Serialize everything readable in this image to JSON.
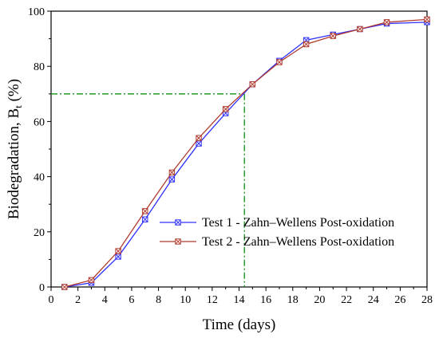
{
  "chart_data": {
    "type": "line",
    "title": "",
    "xlabel": "Time (days)",
    "ylabel_main": "Biodegradation, B",
    "ylabel_sub": "t",
    "ylabel_unit": " (%)",
    "xlim": [
      0,
      28
    ],
    "ylim": [
      0,
      100
    ],
    "xticks": [
      0,
      2,
      4,
      6,
      8,
      10,
      12,
      14,
      16,
      18,
      20,
      22,
      24,
      26,
      28
    ],
    "yticks": [
      0,
      20,
      40,
      60,
      80,
      100
    ],
    "grid": false,
    "legend_position": "center-right",
    "x": [
      1,
      3,
      5,
      7,
      9,
      11,
      13,
      15,
      17,
      19,
      21,
      23,
      25,
      28
    ],
    "series": [
      {
        "name": "Test 1 - Zahn–Wellens Post-oxidation",
        "color": "#3030ff",
        "marker": "x-square",
        "values": [
          0,
          1.5,
          11,
          24.5,
          39,
          52,
          63,
          73.5,
          82,
          89.5,
          91.5,
          93.5,
          95.5,
          96
        ]
      },
      {
        "name": "Test 2 - Zahn–Wellens Post-oxidation",
        "color": "#b03a2e",
        "marker": "x-square",
        "values": [
          0,
          2.5,
          13,
          27.5,
          41.5,
          54,
          64.5,
          73.5,
          81.5,
          88,
          91,
          93.5,
          96,
          97
        ]
      }
    ],
    "reference_line": {
      "color": "#109010",
      "style": "dash-dot",
      "x": 14.4,
      "y": 70
    }
  }
}
